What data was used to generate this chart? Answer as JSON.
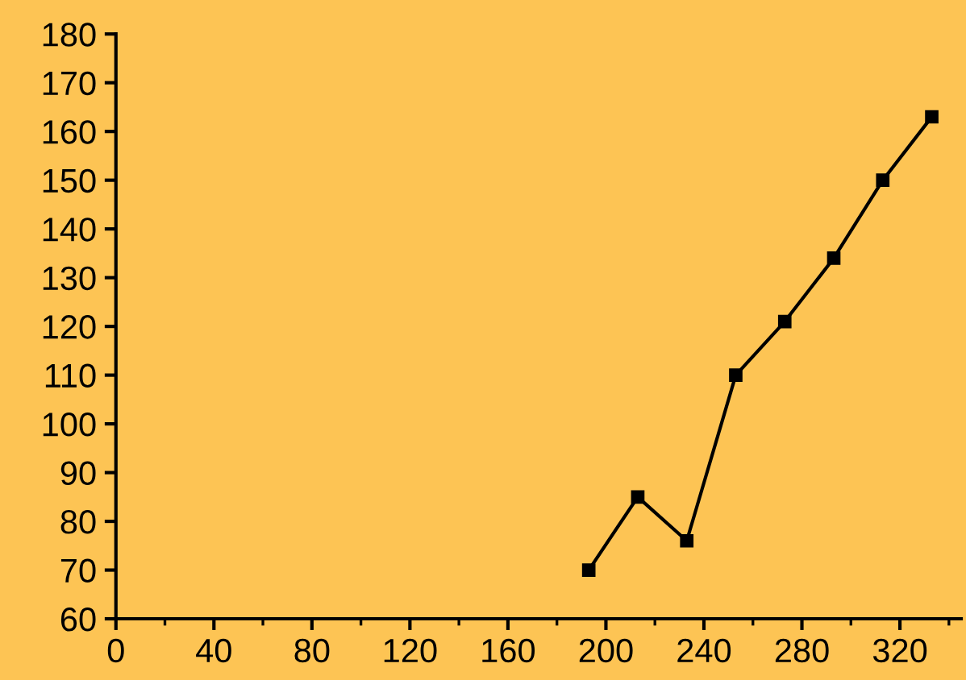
{
  "chart_data": {
    "type": "line",
    "x": [
      193,
      213,
      233,
      253,
      273,
      293,
      313,
      333
    ],
    "series": [
      {
        "color": "#000000",
        "values": [
          70,
          85,
          76,
          110,
          121,
          134,
          150,
          163
        ]
      }
    ],
    "xlim": [
      0,
      345
    ],
    "xticks": [
      0,
      40,
      80,
      120,
      160,
      200,
      240,
      280,
      320
    ],
    "ylim": [
      60,
      180
    ],
    "yticks": [
      60,
      70,
      80,
      90,
      100,
      110,
      120,
      130,
      140,
      150,
      160,
      170,
      180
    ],
    "marker": "square",
    "line_style": "solid",
    "grid": false,
    "legend": false
  }
}
